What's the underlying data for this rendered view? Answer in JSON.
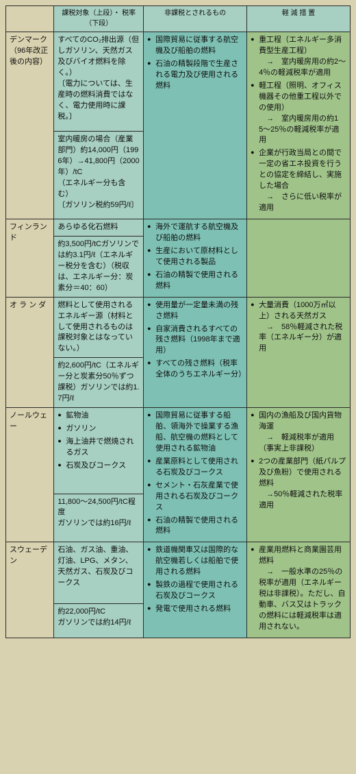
{
  "headers": {
    "coltax": "課税対象（上段）・\n税率（下段）",
    "colexem": "非課税とされるもの",
    "colrel": "軽 減 措 置"
  },
  "rows": [
    {
      "country": "デンマーク\n（96年改正後の内容）",
      "tax_top": "すべてのCO₂排出源（但しガソリン、天然ガス及びバイオ燃料を除く。）\n〔電力については、生産時の燃料消費ではなく、電力使用時に課税。〕",
      "tax_bot": "室内暖房の場合（産業部門）約14,000円（1996年）→41,800円（2000年）/tC\n（エネルギー分も含む）\n〔ガソリン税約59円/ℓ〕",
      "exem": [
        "国際貿易に従事する航空機及び船舶の燃料",
        "石油の精製段階で生産される電力及び使用される燃料"
      ],
      "rel": [
        "重工程（エネルギー多消費型生産工程）\n→　室内暖房用の約2〜4％の軽減税率が適用",
        "軽工程（照明、オフィス機器その他重工程以外での使用）\n→　室内暖房用の約15〜25％の軽減税率が適用",
        "企業が行政当局との間で一定の省エネ投資を行うとの協定を締結し、実施した場合\n→　さらに低い税率が適用"
      ]
    },
    {
      "country": "フィンランド",
      "tax_top": "あらゆる化石燃料",
      "tax_bot": "約3,500円/tCガソリンでは約3.1円/ℓ（エネルギー税分を含む）（税収は、エネルギー分：炭素分＝40：60）",
      "exem": [
        "海外で運航する航空機及び船舶の燃料",
        "生産において原材料として使用される製品",
        "石油の精製で使用される燃料"
      ],
      "rel": []
    },
    {
      "country": "オ ラ ン ダ",
      "tax_top": "燃料として使用されるエネルギー源（材料として使用されるものは課税対象とはなっていない。）",
      "tax_bot": "約2,600円/tC（エネルギー分と炭素分50％ずつ課税）ガソリンでは約1.7円/ℓ",
      "exem": [
        "使用量が一定量未満の残さ燃料",
        "自家消費されるすべての残さ燃料（1998年まで適用）",
        "すべての残さ燃料（税率全体のうちエネルギー分）"
      ],
      "rel": [
        "大量消費（1000万㎥以上）される天然ガス\n→　58％軽減された税率（エネルギー分）が適用"
      ]
    },
    {
      "country": "ノールウェー",
      "tax_top_list": [
        "鉱物油",
        "ガソリン",
        "海上油井で燃焼されるガス",
        "石炭及びコークス"
      ],
      "tax_bot": "11,800〜24,500円/tC程度\nガソリンでは約16円/ℓ",
      "exem": [
        "国際貿易に従事する船舶、領海外で操業する漁船、航空機の燃料として使用される鉱物油",
        "産業原料として使用される石炭及びコークス",
        "セメント・石灰産業で使用される石炭及びコークス",
        "石油の精製で使用される燃料"
      ],
      "rel": [
        "国内の漁船及び国内貨物海運\n→　軽減税率が適用（事実上非課税）",
        "2つの産業部門（紙パルプ及び魚粉）で使用される燃料\n→50％軽減された税率適用"
      ]
    },
    {
      "country": "スウェーデン",
      "tax_top": "石油、ガス油、重油、灯油、LPG、メタン、天然ガス、石炭及びコークス",
      "tax_bot": "約22,000円/tC\nガソリンでは約14円/ℓ",
      "exem": [
        "鉄道機関車又は国際的な航空機若しくは船舶で使用される燃料",
        "製鉄の過程で使用される石炭及びコークス",
        "発電で使用される燃料"
      ],
      "rel": [
        "産業用燃料と商業園芸用燃料\n→　一般水準の25％の税率が適用（エネルギー税は非課税）。ただし、自動車、バス又はトラックの燃料には軽減税率は適用されない。"
      ]
    }
  ]
}
